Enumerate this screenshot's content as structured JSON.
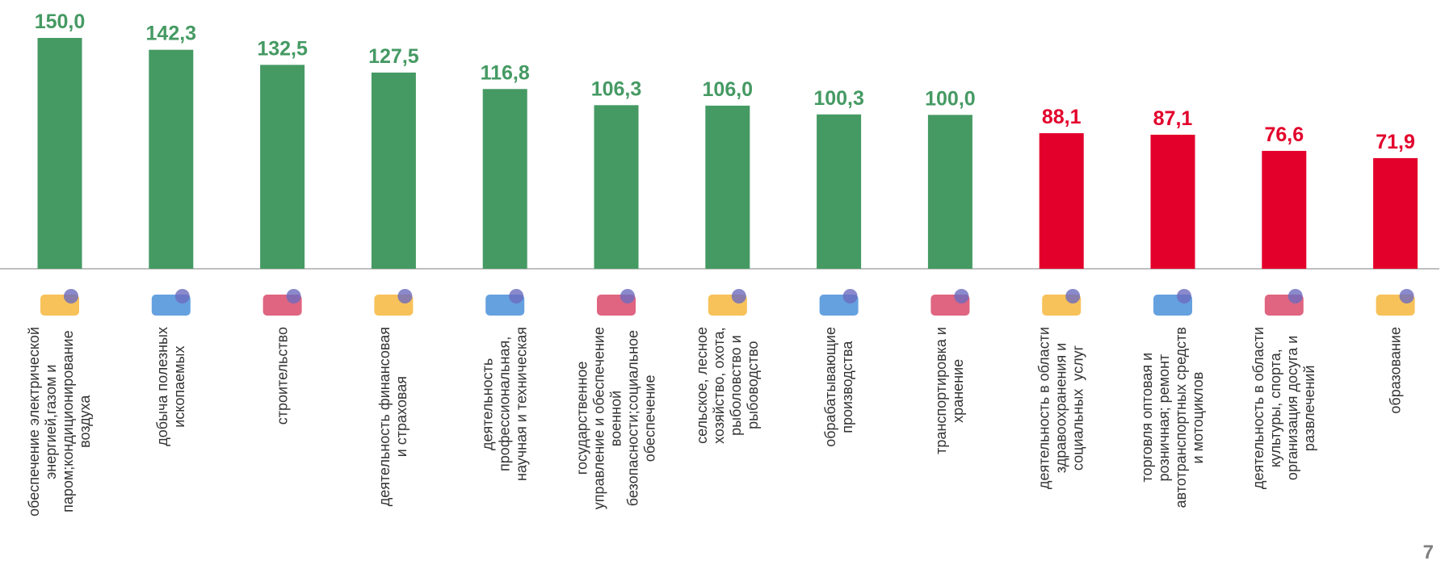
{
  "chart_data": {
    "type": "bar",
    "categories": [
      "обеспечение электрической\nэнергией,газом и\nпаром;кондиционирование\nвоздуха",
      "добыча полезных\nископаемых",
      "строительство",
      "деятельность финансовая\nи страховая",
      "деятельность\nпрофессиональная,\nнаучная и техническая",
      "государственное\nуправление и обеспечение\nвоенной\nбезопасности;социальное\nобеспечение",
      "сельское, лесное\nхозяйство, охота,\nрыболовство и\nрыбоводство",
      "обрабатывающие\nпроизводства",
      "транспортировка и\nхранение",
      "деятельность в области\nздравоохранения и\nсоциальных  услуг",
      "торговля оптовая и\nрозничная; ремонт\nавтотранспортных средств\nи мотоциклов",
      "деятельность в области\nкультуры, спорта,\nорганизация досуга и\nразвлечений",
      "образование"
    ],
    "values": [
      150.0,
      142.3,
      132.5,
      127.5,
      116.8,
      106.3,
      106.0,
      100.3,
      100.0,
      88.1,
      87.1,
      76.6,
      71.9
    ],
    "value_labels": [
      "150,0",
      "142,3",
      "132,5",
      "127,5",
      "116,8",
      "106,3",
      "106,0",
      "100,3",
      "100,0",
      "88,1",
      "87,1",
      "76,6",
      "71,9"
    ],
    "colors": [
      "#459a63",
      "#459a63",
      "#459a63",
      "#459a63",
      "#459a63",
      "#459a63",
      "#459a63",
      "#459a63",
      "#459a63",
      "#e3002b",
      "#e3002b",
      "#e3002b",
      "#e3002b"
    ]
  },
  "page_number": "7"
}
